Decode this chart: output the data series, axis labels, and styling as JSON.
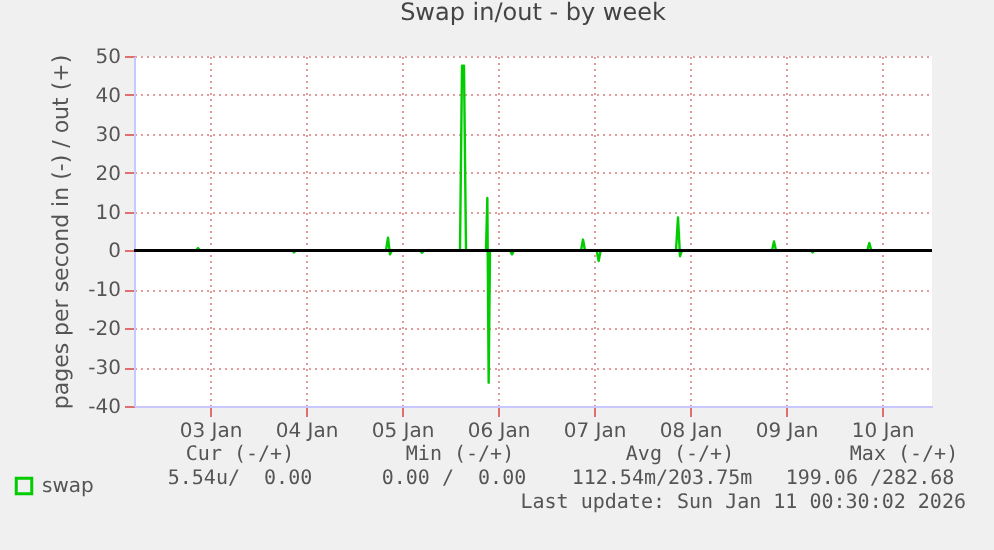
{
  "chart_data": {
    "type": "line",
    "title": "Swap in/out - by week",
    "ylabel": "pages per second in (-) / out (+)",
    "xlim": [
      "2026-01-02T17:00",
      "2026-01-11T00:30"
    ],
    "xticks": [
      {
        "value": "2026-01-03T12:00",
        "label": "03 Jan"
      },
      {
        "value": "2026-01-04T12:00",
        "label": "04 Jan"
      },
      {
        "value": "2026-01-05T12:00",
        "label": "05 Jan"
      },
      {
        "value": "2026-01-06T12:00",
        "label": "06 Jan"
      },
      {
        "value": "2026-01-07T12:00",
        "label": "07 Jan"
      },
      {
        "value": "2026-01-08T12:00",
        "label": "08 Jan"
      },
      {
        "value": "2026-01-09T12:00",
        "label": "09 Jan"
      },
      {
        "value": "2026-01-10T12:00",
        "label": "10 Jan"
      }
    ],
    "ylim": [
      -40,
      50
    ],
    "yticks": [
      -40,
      -30,
      -20,
      -10,
      0,
      10,
      20,
      30,
      40,
      50
    ],
    "grid": true,
    "legend": "bottom left",
    "marker": "none",
    "line_style": "solid",
    "ref_lines": [
      {
        "axis": "y",
        "value": 0,
        "color": "#000000"
      }
    ],
    "series": [
      {
        "name": "swap",
        "color": "#00cc00",
        "x": [
          "2026-01-02T17:00",
          "2026-01-03T08:30",
          "2026-01-03T09:00",
          "2026-01-03T09:30",
          "2026-01-04T08:30",
          "2026-01-04T09:00",
          "2026-01-04T09:30",
          "2026-01-05T08:00",
          "2026-01-05T08:30",
          "2026-01-05T09:00",
          "2026-01-05T09:30",
          "2026-01-05T16:30",
          "2026-01-05T17:00",
          "2026-01-05T17:30",
          "2026-01-06T02:30",
          "2026-01-06T03:00",
          "2026-01-06T03:30",
          "2026-01-06T04:00",
          "2026-01-06T09:00",
          "2026-01-06T09:20",
          "2026-01-06T09:40",
          "2026-01-06T10:00",
          "2026-01-06T15:00",
          "2026-01-06T15:30",
          "2026-01-06T16:00",
          "2026-01-07T08:45",
          "2026-01-07T09:15",
          "2026-01-07T09:45",
          "2026-01-07T12:40",
          "2026-01-07T13:10",
          "2026-01-07T13:40",
          "2026-01-08T08:30",
          "2026-01-08T09:00",
          "2026-01-08T09:30",
          "2026-01-08T10:00",
          "2026-01-09T08:30",
          "2026-01-09T09:00",
          "2026-01-09T09:30",
          "2026-01-09T18:10",
          "2026-01-09T18:40",
          "2026-01-09T19:10",
          "2026-01-10T08:20",
          "2026-01-10T08:50",
          "2026-01-10T09:20",
          "2026-01-11T00:30"
        ],
        "values": [
          0,
          0,
          0.6,
          0,
          0,
          -0.5,
          0,
          0,
          3.3,
          -1,
          0,
          0,
          -0.6,
          0,
          0,
          47.5,
          47.5,
          0,
          0,
          13.5,
          -34,
          0,
          0,
          -1,
          0,
          0,
          2.8,
          0,
          0,
          -2.7,
          0,
          0,
          8.5,
          -1.5,
          0,
          0,
          2.3,
          0,
          0,
          -0.5,
          0,
          0,
          1.9,
          0,
          0
        ]
      }
    ],
    "annotations": [
      "Cur (-/+)",
      "Min (-/+)",
      "Avg (-/+)",
      "Max (-/+)",
      "5.54u/  0.00",
      "0.00 /  0.00",
      "112.54m/203.75m",
      "199.06 /282.68",
      "Last update: Sun Jan 11 00:30:02 2026"
    ]
  }
}
